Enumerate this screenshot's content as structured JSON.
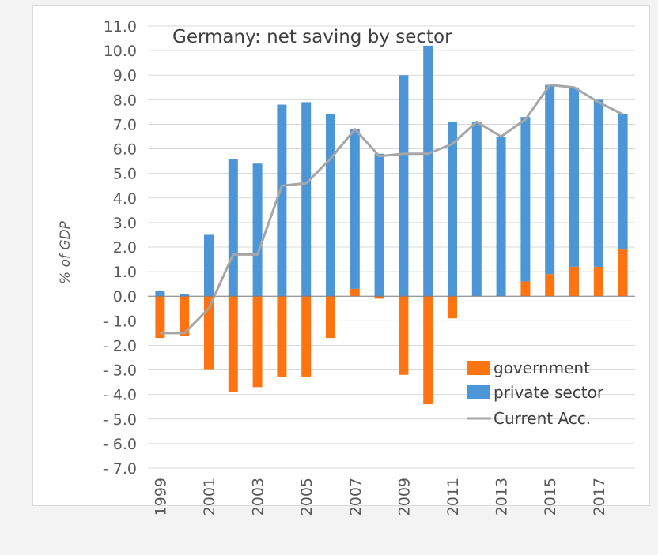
{
  "chart_data": {
    "type": "bar",
    "subtype": "stacked bar with line overlay",
    "title": "Germany: net saving by sector",
    "xlabel": "",
    "ylabel": "% of GDP",
    "ylim": [
      -7.0,
      11.0
    ],
    "ytick_step": 1.0,
    "yticks": [
      "11.0",
      "10.0",
      "9.0",
      "8.0",
      "7.0",
      "6.0",
      "5.0",
      "4.0",
      "3.0",
      "2.0",
      "1.0",
      "0.0",
      "- 1.0",
      "- 2.0",
      "- 3.0",
      "- 4.0",
      "- 5.0",
      "- 6.0",
      "- 7.0"
    ],
    "grid": true,
    "legend_position": "bottom-right",
    "categories": [
      "1999",
      "2000",
      "2001",
      "2002",
      "2003",
      "2004",
      "2005",
      "2006",
      "2007",
      "2008",
      "2009",
      "2010",
      "2011",
      "2012",
      "2013",
      "2014",
      "2015",
      "2016",
      "2017",
      "2018"
    ],
    "xtick_labels_shown": [
      "1999",
      "2001",
      "2003",
      "2005",
      "2007",
      "2009",
      "2011",
      "2013",
      "2015",
      "2017"
    ],
    "series": [
      {
        "name": "government",
        "kind": "bar",
        "color": "#ff7410",
        "values": [
          -1.7,
          -1.6,
          -3.0,
          -3.9,
          -3.7,
          -3.3,
          -3.3,
          -1.7,
          0.3,
          -0.1,
          -3.2,
          -4.4,
          -0.9,
          0.0,
          0.0,
          0.6,
          0.9,
          1.2,
          1.2,
          1.9
        ]
      },
      {
        "name": "private sector",
        "kind": "bar",
        "color": "#4c96d7",
        "values": [
          0.2,
          0.1,
          2.5,
          5.6,
          5.4,
          7.8,
          7.9,
          7.4,
          6.5,
          5.8,
          9.0,
          10.2,
          7.1,
          7.1,
          6.5,
          6.7,
          7.7,
          7.3,
          6.8,
          5.5
        ]
      },
      {
        "name": "Current Acc.",
        "kind": "line",
        "color": "#a6a6a6",
        "values": [
          -1.5,
          -1.5,
          -0.5,
          1.7,
          1.7,
          4.5,
          4.6,
          5.6,
          6.8,
          5.7,
          5.8,
          5.8,
          6.2,
          7.1,
          6.5,
          7.2,
          8.6,
          8.5,
          7.9,
          7.4
        ]
      }
    ]
  }
}
